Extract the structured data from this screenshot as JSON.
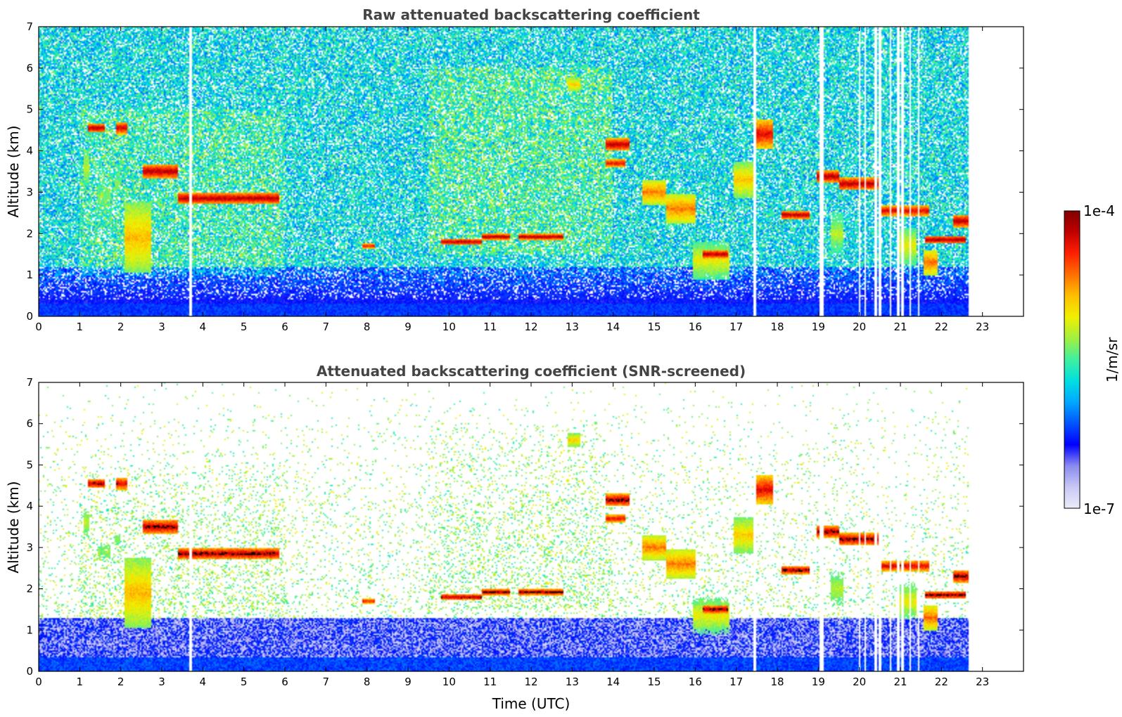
{
  "chart_data": [
    {
      "type": "heatmap",
      "title": "Raw attenuated backscattering coefficient",
      "xlabel": "",
      "ylabel": "Altitude (km)",
      "xlim": [
        0,
        24
      ],
      "ylim": [
        0,
        7
      ],
      "xticks": [
        "0",
        "1",
        "2",
        "3",
        "4",
        "5",
        "6",
        "7",
        "8",
        "9",
        "10",
        "11",
        "12",
        "13",
        "14",
        "15",
        "16",
        "17",
        "18",
        "19",
        "20",
        "21",
        "22",
        "23"
      ],
      "yticks": [
        "0",
        "1",
        "2",
        "3",
        "4",
        "5",
        "6",
        "7"
      ],
      "data_end_time": 22.65,
      "grid": false,
      "screened": false
    },
    {
      "type": "heatmap",
      "title": "Attenuated backscattering coefficient (SNR-screened)",
      "xlabel": "Time (UTC)",
      "ylabel": "Altitude (km)",
      "xlim": [
        0,
        24
      ],
      "ylim": [
        0,
        7
      ],
      "xticks": [
        "0",
        "1",
        "2",
        "3",
        "4",
        "5",
        "6",
        "7",
        "8",
        "9",
        "10",
        "11",
        "12",
        "13",
        "14",
        "15",
        "16",
        "17",
        "18",
        "19",
        "20",
        "21",
        "22",
        "23"
      ],
      "yticks": [
        "0",
        "1",
        "2",
        "3",
        "4",
        "5",
        "6",
        "7"
      ],
      "data_end_time": 22.65,
      "grid": false,
      "screened": true
    }
  ],
  "colorbar": {
    "label": "1/m/sr",
    "max_label": "1e-4",
    "min_label": "1e-7",
    "scale": "log",
    "colormap": [
      "#ececfa",
      "#c8c8f4",
      "#8a8af0",
      "#0000ff",
      "#0055ff",
      "#00a8ff",
      "#00e0e0",
      "#40f0a0",
      "#a0f040",
      "#f0f000",
      "#ffc000",
      "#ff7000",
      "#ff2000",
      "#c00000",
      "#800000"
    ]
  },
  "features": [
    {
      "t0": 1.1,
      "t1": 1.25,
      "alt": 3.6,
      "thick": 0.9,
      "level": 0.6
    },
    {
      "t0": 1.2,
      "t1": 1.6,
      "alt": 4.55,
      "thick": 0.22,
      "level": 0.95
    },
    {
      "t0": 1.9,
      "t1": 2.15,
      "alt": 4.55,
      "thick": 0.3,
      "level": 0.92
    },
    {
      "t0": 1.45,
      "t1": 1.75,
      "alt": 2.9,
      "thick": 0.8,
      "level": 0.55
    },
    {
      "t0": 1.85,
      "t1": 2.0,
      "alt": 3.2,
      "thick": 0.6,
      "level": 0.55
    },
    {
      "t0": 2.1,
      "t1": 2.75,
      "alt": 1.9,
      "thick": 1.7,
      "level": 0.72
    },
    {
      "t0": 2.55,
      "t1": 3.4,
      "alt": 3.5,
      "thick": 0.35,
      "level": 0.95
    },
    {
      "t0": 3.4,
      "t1": 5.85,
      "alt": 2.85,
      "thick": 0.28,
      "level": 0.95
    },
    {
      "t0": 7.9,
      "t1": 8.2,
      "alt": 1.7,
      "thick": 0.12,
      "level": 0.9
    },
    {
      "t0": 9.8,
      "t1": 10.8,
      "alt": 1.8,
      "thick": 0.15,
      "level": 0.95
    },
    {
      "t0": 10.8,
      "t1": 11.5,
      "alt": 1.92,
      "thick": 0.15,
      "level": 0.95
    },
    {
      "t0": 11.7,
      "t1": 12.8,
      "alt": 1.92,
      "thick": 0.15,
      "level": 0.95
    },
    {
      "t0": 12.9,
      "t1": 13.2,
      "alt": 5.6,
      "thick": 0.35,
      "level": 0.7
    },
    {
      "t0": 13.8,
      "t1": 14.4,
      "alt": 4.15,
      "thick": 0.3,
      "level": 0.95
    },
    {
      "t0": 13.8,
      "t1": 14.3,
      "alt": 3.7,
      "thick": 0.2,
      "level": 0.9
    },
    {
      "t0": 14.7,
      "t1": 15.3,
      "alt": 3.0,
      "thick": 0.6,
      "level": 0.78
    },
    {
      "t0": 15.3,
      "t1": 16.0,
      "alt": 2.6,
      "thick": 0.7,
      "level": 0.78
    },
    {
      "t0": 15.95,
      "t1": 16.85,
      "alt": 1.35,
      "thick": 0.9,
      "level": 0.65
    },
    {
      "t0": 16.2,
      "t1": 16.8,
      "alt": 1.5,
      "thick": 0.2,
      "level": 0.95
    },
    {
      "t0": 16.95,
      "t1": 17.45,
      "alt": 3.3,
      "thick": 0.9,
      "level": 0.7
    },
    {
      "t0": 17.5,
      "t1": 17.9,
      "alt": 4.4,
      "thick": 0.7,
      "level": 0.9
    },
    {
      "t0": 18.1,
      "t1": 18.8,
      "alt": 2.45,
      "thick": 0.2,
      "level": 0.95
    },
    {
      "t0": 18.95,
      "t1": 19.5,
      "alt": 3.38,
      "thick": 0.3,
      "level": 0.95
    },
    {
      "t0": 19.5,
      "t1": 20.5,
      "alt": 3.2,
      "thick": 0.3,
      "level": 0.95
    },
    {
      "t0": 19.3,
      "t1": 19.6,
      "alt": 2.0,
      "thick": 1.0,
      "level": 0.6
    },
    {
      "t0": 20.5,
      "t1": 21.3,
      "alt": 2.55,
      "thick": 0.25,
      "level": 0.92
    },
    {
      "t0": 20.9,
      "t1": 21.4,
      "alt": 1.7,
      "thick": 0.9,
      "level": 0.65
    },
    {
      "t0": 21.2,
      "t1": 21.7,
      "alt": 2.55,
      "thick": 0.3,
      "level": 0.9
    },
    {
      "t0": 21.6,
      "t1": 22.6,
      "alt": 1.85,
      "thick": 0.2,
      "level": 0.95
    },
    {
      "t0": 21.55,
      "t1": 21.9,
      "alt": 1.3,
      "thick": 0.6,
      "level": 0.8
    },
    {
      "t0": 22.3,
      "t1": 22.65,
      "alt": 2.3,
      "thick": 0.3,
      "level": 0.95
    }
  ],
  "gaps": [
    3.7,
    17.45,
    19.05,
    19.1,
    20.0,
    20.15,
    20.4,
    20.5,
    20.75,
    20.95,
    21.05,
    21.25,
    21.45
  ]
}
